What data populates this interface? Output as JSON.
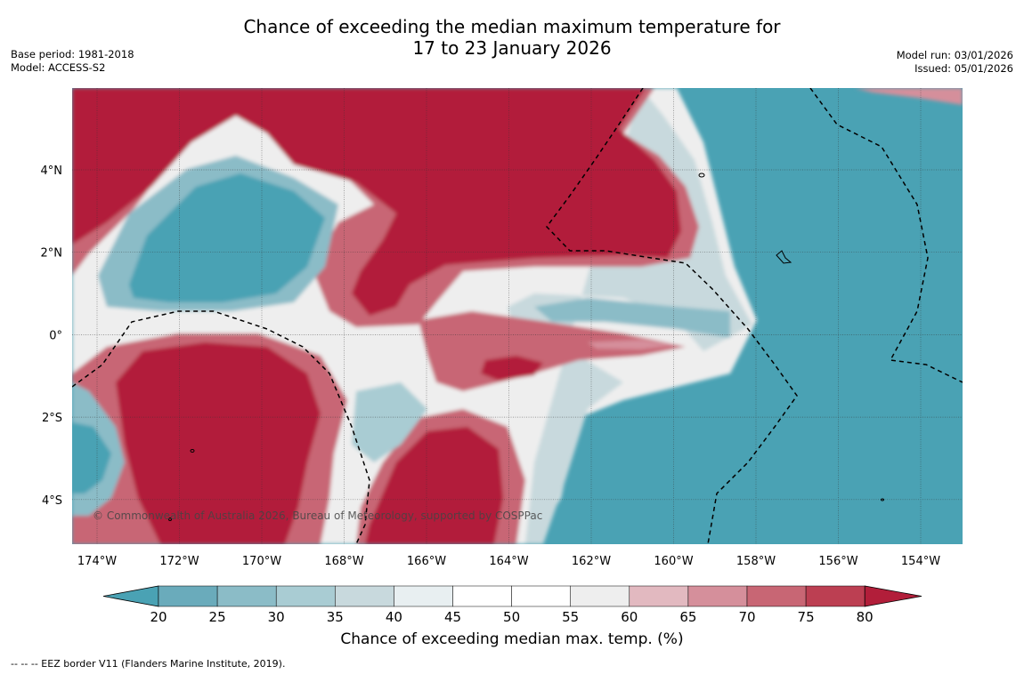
{
  "title_line1": "Chance of exceeding the median maximum temperature for",
  "title_line2": "17 to 23 January 2026",
  "base_period": "Base period: 1981-2018",
  "model": "Model: ACCESS-S2",
  "model_run": "Model run: 03/01/2026",
  "issued": "Issued: 05/01/2026",
  "copyright": "© Commonwealth of Australia 2026, Bureau of Meteorology, supported by COSPPac",
  "colorbar_label": "Chance of exceeding median max. temp. (%)",
  "footnote": "--  --  -- EEZ border V11 (Flanders Marine Institute, 2019).",
  "lon_labels": [
    "174°W",
    "172°W",
    "170°W",
    "168°W",
    "166°W",
    "164°W",
    "162°W",
    "160°W",
    "158°W",
    "156°W",
    "154°W"
  ],
  "lat_labels": [
    "4°N",
    "2°N",
    "0°",
    "2°S",
    "4°S"
  ],
  "colorbar": {
    "ticks": [
      "20",
      "25",
      "30",
      "35",
      "40",
      "45",
      "50",
      "55",
      "60",
      "65",
      "70",
      "75",
      "80"
    ],
    "colors": [
      "#6aabbb",
      "#8bbcc7",
      "#a9ccd3",
      "#c8d9dd",
      "#e8eff1",
      "#ffffff",
      "#ffffff",
      "#eeeeee",
      "#e2b9c0",
      "#d58f9b",
      "#c86674",
      "#bc3f52"
    ],
    "under_color": "#4aa2b4",
    "over_color": "#b21e3a"
  },
  "colors": {
    "cool": "#4aa2b4",
    "warm": "#b21e3a",
    "warm_mid": "#c86674",
    "warm_light": "#e2b9c0",
    "neutral": "#eeeeee",
    "cool_light": "#c8d9dd",
    "cool_mid": "#8bbcc7"
  }
}
